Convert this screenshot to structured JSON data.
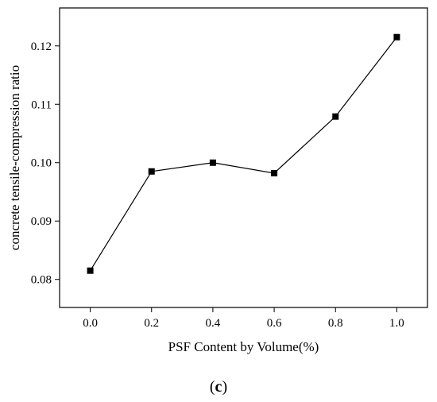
{
  "chart_data": {
    "type": "line",
    "title": "",
    "xlabel": "PSF Content by Volume(%)",
    "ylabel": "concrete tensile-compression ratio",
    "x": [
      0.0,
      0.2,
      0.4,
      0.6,
      0.8,
      1.0
    ],
    "series": [
      {
        "name": "",
        "values": [
          0.0815,
          0.0985,
          0.1,
          0.0982,
          0.1079,
          0.1215
        ]
      }
    ],
    "xticks": [
      "0.0",
      "0.2",
      "0.4",
      "0.6",
      "0.8",
      "1.0"
    ],
    "yticks": [
      "0.08",
      "0.09",
      "0.10",
      "0.11",
      "0.12"
    ],
    "xlim": [
      -0.1,
      1.1
    ],
    "ylim": [
      0.0752,
      0.1265
    ],
    "grid": false,
    "marker": "square",
    "line_color": "#000000"
  },
  "caption": {
    "open": "(",
    "letter": "c",
    "close": ")"
  }
}
